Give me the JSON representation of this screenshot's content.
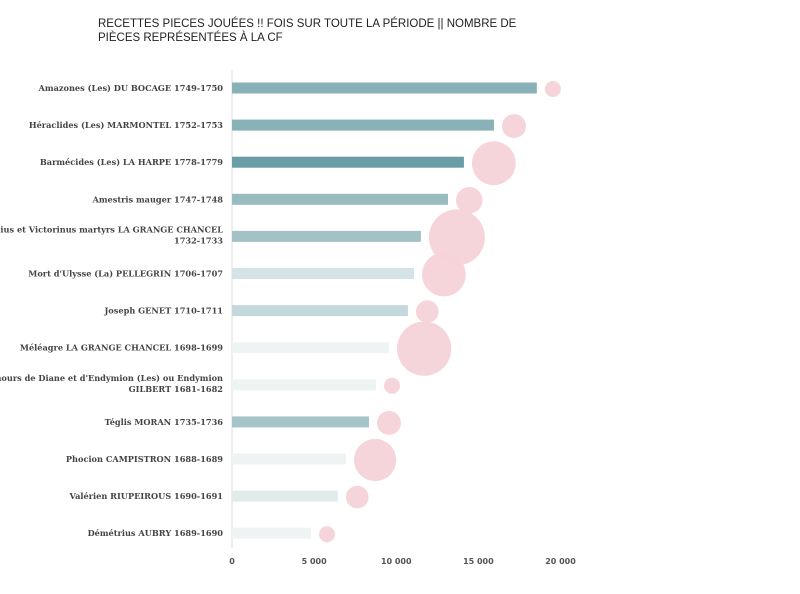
{
  "chart_data": {
    "type": "bar",
    "orientation": "horizontal",
    "title": "RECETTES PIECES JOUÉES !! FOIS SUR TOUTE LA PÉRIODE || NOMBRE DE PIÈCES REPRÉSENTÉES À LA CF",
    "xlabel": "",
    "ylabel": "",
    "xlim": [
      0,
      22000
    ],
    "x_ticks": [
      "0",
      "5 000",
      "10 000",
      "15 000",
      "20 000"
    ],
    "x_tick_values": [
      0,
      5000,
      10000,
      15000,
      20000
    ],
    "grid": false,
    "categories": [
      [
        "Amazones (Les) DU BOCAGE 1749-1750"
      ],
      [
        "Héraclides (Les) MARMONTEL 1752-1753"
      ],
      [
        "Barmécides (Les) LA HARPE 1778-1779"
      ],
      [
        "Amestris mauger 1747-1748"
      ],
      [
        "Cassius et Victorinus martyrs LA GRANGE CHANCEL",
        "1732-1733"
      ],
      [
        "Mort d'Ulysse (La) PELLEGRIN 1706-1707"
      ],
      [
        "Joseph GENET 1710-1711"
      ],
      [
        "Méléagre LA GRANGE CHANCEL 1698-1699"
      ],
      [
        "Amours de Diane et d'Endymion (Les) ou Endymion",
        "GILBERT 1681-1682"
      ],
      [
        "Téglis MORAN 1735-1736"
      ],
      [
        "Phocion CAMPISTRON 1688-1689"
      ],
      [
        "Valérien RIUPEIROUS 1690-1691"
      ],
      [
        "Démétrius AUBRY 1689-1690"
      ]
    ],
    "values": [
      18560,
      15950,
      14120,
      13150,
      11500,
      11080,
      10710,
      9560,
      8770,
      8340,
      6940,
      6450,
      4810
    ],
    "bubble_sizes_relative": [
      4,
      9,
      30,
      11,
      49,
      30,
      8,
      46,
      4,
      9,
      28,
      8,
      4
    ],
    "bar_colors": [
      "#88b2b8",
      "#88b2b8",
      "#6a9ea6",
      "#99bcc1",
      "#a2c2c6",
      "#d3e3e6",
      "#c3d9dc",
      "#eef4f4",
      "#eef4f4",
      "#a6c5c9",
      "#eef4f4",
      "#e0ecec",
      "#eef4f4"
    ],
    "bubble_color": "#f5d3d8"
  }
}
